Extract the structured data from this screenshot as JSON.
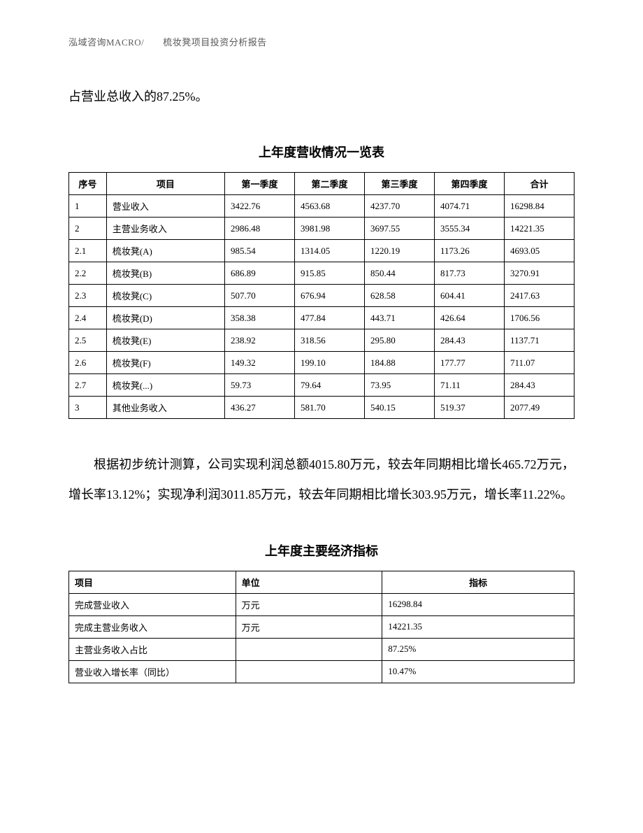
{
  "header": "泓域咨询MACRO/　　梳妆凳项目投资分析报告",
  "intro": "占营业总收入的87.25%。",
  "table1": {
    "title": "上年度营收情况一览表",
    "headers": [
      "序号",
      "项目",
      "第一季度",
      "第二季度",
      "第三季度",
      "第四季度",
      "合计"
    ],
    "rows": [
      [
        "1",
        "营业收入",
        "3422.76",
        "4563.68",
        "4237.70",
        "4074.71",
        "16298.84"
      ],
      [
        "2",
        "主营业务收入",
        "2986.48",
        "3981.98",
        "3697.55",
        "3555.34",
        "14221.35"
      ],
      [
        "2.1",
        "梳妆凳(A)",
        "985.54",
        "1314.05",
        "1220.19",
        "1173.26",
        "4693.05"
      ],
      [
        "2.2",
        "梳妆凳(B)",
        "686.89",
        "915.85",
        "850.44",
        "817.73",
        "3270.91"
      ],
      [
        "2.3",
        "梳妆凳(C)",
        "507.70",
        "676.94",
        "628.58",
        "604.41",
        "2417.63"
      ],
      [
        "2.4",
        "梳妆凳(D)",
        "358.38",
        "477.84",
        "443.71",
        "426.64",
        "1706.56"
      ],
      [
        "2.5",
        "梳妆凳(E)",
        "238.92",
        "318.56",
        "295.80",
        "284.43",
        "1137.71"
      ],
      [
        "2.6",
        "梳妆凳(F)",
        "149.32",
        "199.10",
        "184.88",
        "177.77",
        "711.07"
      ],
      [
        "2.7",
        "梳妆凳(...)",
        "59.73",
        "79.64",
        "73.95",
        "71.11",
        "284.43"
      ],
      [
        "3",
        "其他业务收入",
        "436.27",
        "581.70",
        "540.15",
        "519.37",
        "2077.49"
      ]
    ]
  },
  "paragraph": "根据初步统计测算，公司实现利润总额4015.80万元，较去年同期相比增长465.72万元，增长率13.12%；实现净利润3011.85万元，较去年同期相比增长303.95万元，增长率11.22%。",
  "table2": {
    "title": "上年度主要经济指标",
    "headers": [
      "项目",
      "单位",
      "指标"
    ],
    "rows": [
      [
        "完成营业收入",
        "万元",
        "16298.84"
      ],
      [
        "完成主营业务收入",
        "万元",
        "14221.35"
      ],
      [
        "主营业务收入占比",
        "",
        "87.25%"
      ],
      [
        "营业收入增长率（同比）",
        "",
        "10.47%"
      ]
    ]
  }
}
